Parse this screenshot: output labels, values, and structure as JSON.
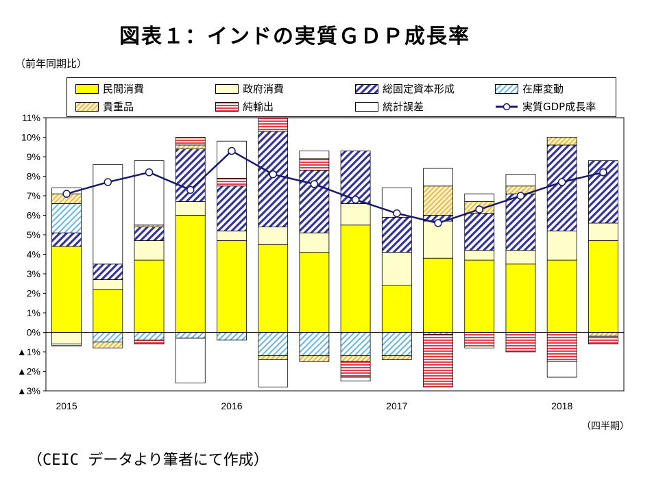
{
  "title": "図表１：インドの実質ＧＤＰ成長率",
  "y_unit": "（前年同期比）",
  "x_unit": "（四半期）",
  "source": "（CEIC データより筆者にて作成）",
  "colors": {
    "private_consumption": "#ffff00",
    "government_consumption": "#ffffcc",
    "gfcf_hatch": "#333399",
    "inventory_hatch": "#66b3e6",
    "valuables_hatch": "#e6b84d",
    "net_exports_stripe": "#e0404a",
    "line": "#1a1a66"
  },
  "legend": [
    {
      "key": "private",
      "label": "民間消費",
      "icon": "solid-yellow"
    },
    {
      "key": "gov",
      "label": "政府消費",
      "icon": "solid-cream"
    },
    {
      "key": "gfcf",
      "label": "総固定資本形成",
      "icon": "diagonal-blue"
    },
    {
      "key": "inv",
      "label": "在庫変動",
      "icon": "diagonal-lightblue"
    },
    {
      "key": "val",
      "label": "貴重品",
      "icon": "diagonal-gold"
    },
    {
      "key": "net",
      "label": "純輸出",
      "icon": "horizontal-red"
    },
    {
      "key": "err",
      "label": "統計誤差",
      "icon": "solid-white"
    },
    {
      "key": "gdp",
      "label": "実質GDP成長率",
      "icon": "line-marker"
    }
  ],
  "chart_data": {
    "type": "bar",
    "stacked": true,
    "x_tick_labels": [
      "2015",
      "2016",
      "2017",
      "2018"
    ],
    "x_tick_quarters": [
      0,
      4,
      8,
      12
    ],
    "quarters": 14,
    "ylim": [
      -3,
      11
    ],
    "y_ticks": [
      {
        "value": 11,
        "label": "11%"
      },
      {
        "value": 10,
        "label": "10%"
      },
      {
        "value": 9,
        "label": "9%"
      },
      {
        "value": 8,
        "label": "8%"
      },
      {
        "value": 7,
        "label": "7%"
      },
      {
        "value": 6,
        "label": "6%"
      },
      {
        "value": 5,
        "label": "5%"
      },
      {
        "value": 4,
        "label": "4%"
      },
      {
        "value": 3,
        "label": "3%"
      },
      {
        "value": 2,
        "label": "2%"
      },
      {
        "value": 1,
        "label": "1%"
      },
      {
        "value": 0,
        "label": "0%"
      },
      {
        "value": -1,
        "label": "▲1%"
      },
      {
        "value": -2,
        "label": "▲2%"
      },
      {
        "value": -3,
        "label": "▲3%"
      }
    ],
    "series": [
      {
        "name": "民間消費",
        "key": "private",
        "values": [
          4.4,
          2.2,
          3.7,
          6.0,
          4.7,
          4.5,
          4.1,
          5.5,
          2.4,
          3.8,
          3.7,
          3.5,
          3.7,
          4.7
        ]
      },
      {
        "name": "政府消費",
        "key": "gov",
        "values": [
          -0.6,
          0.5,
          1.0,
          0.7,
          0.5,
          0.9,
          1.0,
          1.1,
          1.7,
          1.9,
          0.5,
          0.7,
          1.5,
          0.9
        ]
      },
      {
        "name": "総固定資本形成",
        "key": "gfcf",
        "values": [
          0.7,
          0.8,
          0.7,
          2.7,
          2.3,
          4.9,
          3.2,
          2.7,
          1.8,
          0.3,
          1.9,
          2.9,
          4.4,
          3.2
        ]
      },
      {
        "name": "在庫変動",
        "key": "inv",
        "values": [
          1.5,
          -0.5,
          -0.4,
          -0.3,
          -0.4,
          -1.2,
          -1.2,
          -1.2,
          -1.2,
          -0.1,
          0.0,
          0.0,
          0.0,
          0.0
        ]
      },
      {
        "name": "貴重品",
        "key": "val",
        "values": [
          0.5,
          -0.3,
          0.1,
          0.2,
          0.0,
          -0.2,
          -0.3,
          -0.3,
          -0.2,
          1.5,
          0.6,
          0.4,
          0.4,
          -0.2
        ]
      },
      {
        "name": "純輸出",
        "key": "net",
        "values": [
          -0.1,
          0.0,
          -0.2,
          0.4,
          0.4,
          0.7,
          0.6,
          -0.8,
          0.0,
          -2.7,
          -0.8,
          -1.0,
          -1.5,
          -0.4
        ]
      },
      {
        "name": "統計誤差",
        "key": "err",
        "values": [
          0.3,
          5.1,
          3.3,
          -2.3,
          1.9,
          -1.4,
          0.4,
          -0.2,
          1.5,
          0.9,
          0.4,
          0.6,
          -0.8,
          0.0
        ]
      }
    ],
    "line": {
      "name": "実質GDP成長率",
      "values": [
        7.1,
        7.7,
        8.2,
        7.3,
        9.3,
        8.1,
        7.6,
        6.8,
        6.1,
        5.6,
        6.3,
        7.0,
        7.7,
        8.2
      ]
    }
  }
}
